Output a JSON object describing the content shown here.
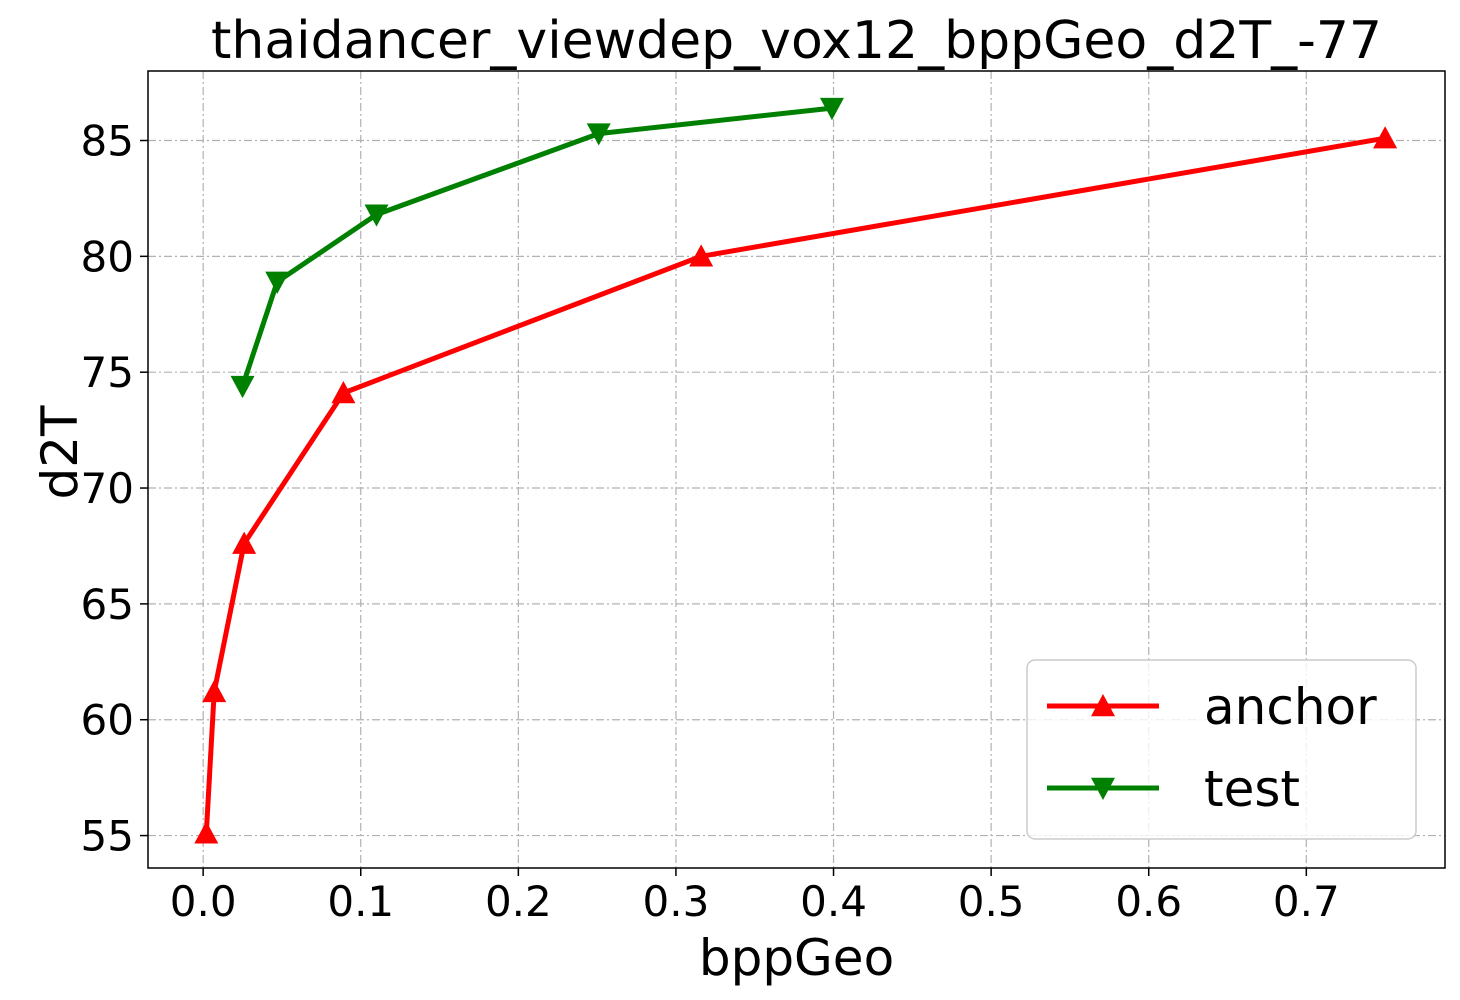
{
  "chart_data": {
    "type": "line",
    "title": "thaidancer_viewdep_vox12_bppGeo_d2T_-77",
    "xlabel": "bppGeo",
    "ylabel": "d2T",
    "xlim": [
      -0.035,
      0.788
    ],
    "ylim": [
      53.6,
      88.0
    ],
    "xticks": [
      0.0,
      0.1,
      0.2,
      0.3,
      0.4,
      0.5,
      0.6,
      0.7
    ],
    "xtick_labels": [
      "0.0",
      "0.1",
      "0.2",
      "0.3",
      "0.4",
      "0.5",
      "0.6",
      "0.7"
    ],
    "yticks": [
      55,
      60,
      65,
      70,
      75,
      80,
      85
    ],
    "ytick_labels": [
      "55",
      "60",
      "65",
      "70",
      "75",
      "80",
      "85"
    ],
    "grid": true,
    "legend_position": "lower-right",
    "series": [
      {
        "name": "anchor",
        "color": "#ff0000",
        "marker": "triangle-up",
        "x": [
          0.002,
          0.007,
          0.026,
          0.089,
          0.316,
          0.75
        ],
        "y": [
          55.1,
          61.2,
          67.6,
          74.1,
          80.0,
          85.1
        ]
      },
      {
        "name": "test",
        "color": "#008000",
        "marker": "triangle-down",
        "x": [
          0.025,
          0.047,
          0.11,
          0.251,
          0.399
        ],
        "y": [
          74.4,
          78.9,
          81.8,
          85.3,
          86.4
        ]
      }
    ]
  }
}
